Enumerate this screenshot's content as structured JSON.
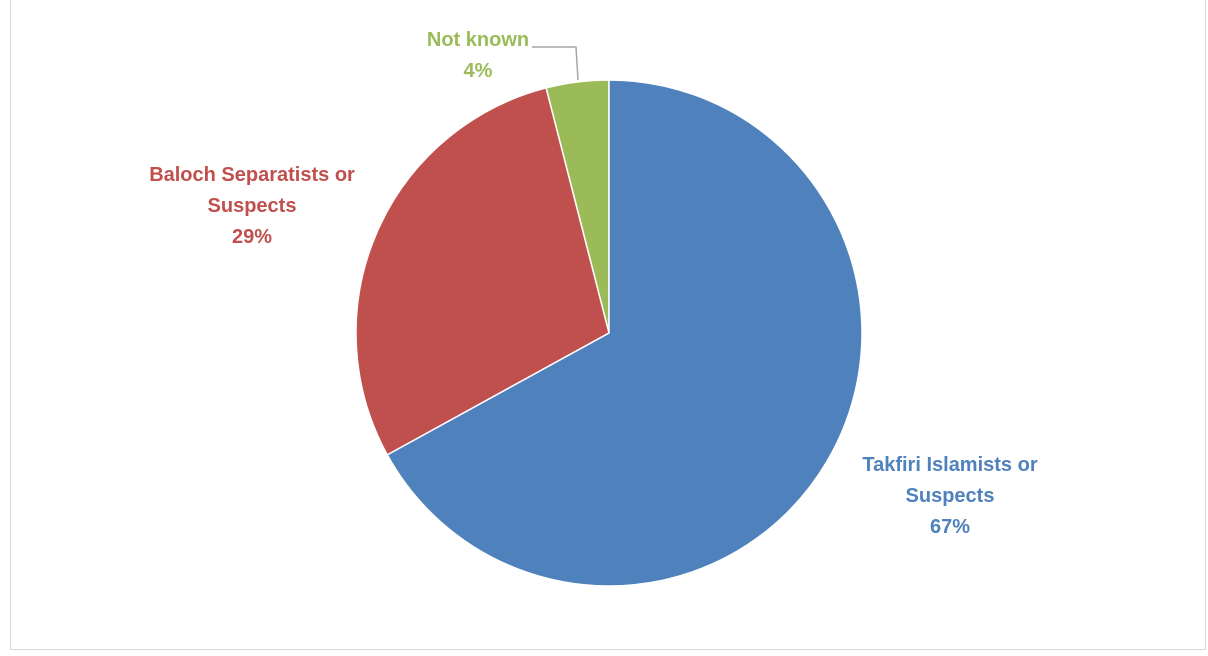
{
  "chart_data": {
    "type": "pie",
    "categories": [
      "Takfiri Islamists or Suspects",
      "Baloch Separatists or Suspects",
      "Not known"
    ],
    "values": [
      67,
      29,
      4
    ],
    "value_labels": [
      "67%",
      "29%",
      "4%"
    ],
    "colors": [
      "#4f81bd",
      "#c0504d",
      "#9bbb59"
    ],
    "start_angle": "top",
    "direction": "clockwise"
  }
}
